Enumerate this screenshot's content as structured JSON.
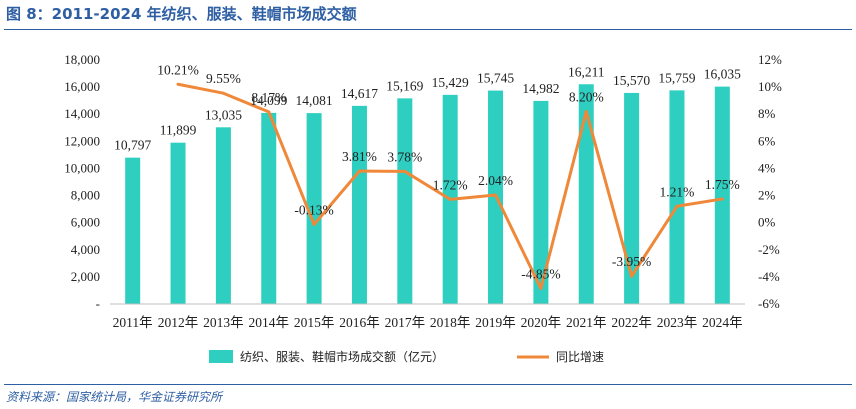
{
  "title": "图 8：2011-2024 年纺织、服装、鞋帽市场成交额",
  "source": "资料来源：国家统计局，华金证券研究所",
  "colors": {
    "bar": "#2ecfc0",
    "line": "#f0883a",
    "title": "#2e5fa3"
  },
  "chart_data": {
    "type": "bar",
    "categories": [
      "2011年",
      "2012年",
      "2013年",
      "2014年",
      "2015年",
      "2016年",
      "2017年",
      "2018年",
      "2019年",
      "2020年",
      "2021年",
      "2022年",
      "2023年",
      "2024年"
    ],
    "series": [
      {
        "name": "纺织、服装、鞋帽市场成交额（亿元）",
        "type": "bar",
        "axis": "left",
        "values": [
          10797,
          11899,
          13035,
          14099,
          14081,
          14617,
          15169,
          15429,
          15745,
          14982,
          16211,
          15570,
          15759,
          16035
        ],
        "labels": [
          "10,797",
          "11,899",
          "13,035",
          "14,099",
          "14,081",
          "14,617",
          "15,169",
          "15,429",
          "15,745",
          "14,982",
          "16,211",
          "15,570",
          "15,759",
          "16,035"
        ]
      },
      {
        "name": "同比增速",
        "type": "line",
        "axis": "right",
        "values": [
          null,
          10.21,
          9.55,
          8.17,
          -0.13,
          3.81,
          3.78,
          1.72,
          2.04,
          -4.85,
          8.2,
          -3.95,
          1.21,
          1.75
        ],
        "labels": [
          null,
          "10.21%",
          "9.55%",
          "8.17%",
          "-0.13%",
          "3.81%",
          "3.78%",
          "1.72%",
          "2.04%",
          "-4.85%",
          "8.20%",
          "-3.95%",
          "1.21%",
          "1.75%"
        ]
      }
    ],
    "y_left": {
      "ylim": [
        0,
        18000
      ],
      "ticks": [
        0,
        2000,
        4000,
        6000,
        8000,
        10000,
        12000,
        14000,
        16000,
        18000
      ],
      "tick_labels": [
        "-",
        "2,000",
        "4,000",
        "6,000",
        "8,000",
        "10,000",
        "12,000",
        "14,000",
        "16,000",
        "18,000"
      ]
    },
    "y_right": {
      "ylim": [
        -6,
        12
      ],
      "ticks": [
        -6,
        -4,
        -2,
        0,
        2,
        4,
        6,
        8,
        10,
        12
      ],
      "tick_labels": [
        "-6%",
        "-4%",
        "-2%",
        "0%",
        "2%",
        "4%",
        "6%",
        "8%",
        "10%",
        "12%"
      ]
    },
    "grid": false,
    "legend_position": "bottom"
  }
}
